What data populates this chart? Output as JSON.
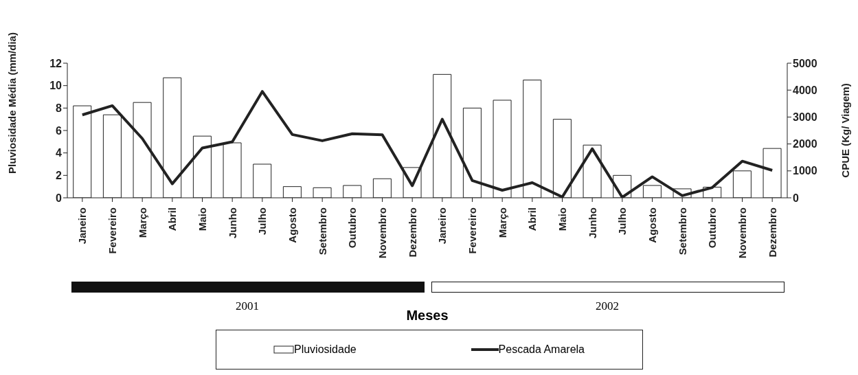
{
  "chart_data": {
    "type": "bar",
    "ylabel": "Pluviosidade Média (mm/dia)",
    "y2label": "CPUE (Kg/ Viagem)",
    "categories": [
      "Janeiro",
      "Fevereiro",
      "Março",
      "Abril",
      "Maio",
      "Junho",
      "Julho",
      "Agosto",
      "Setembro",
      "Outubro",
      "Novembro",
      "Dezembro",
      "Janeiro",
      "Fevereiro",
      "Março",
      "Abril",
      "Maio",
      "Junho",
      "Julho",
      "Agosto",
      "Setembro",
      "Outubro",
      "Novembro",
      "Dezembro"
    ],
    "series": [
      {
        "name": "Pluviosidade",
        "color": "#ffffff",
        "values": [
          8.2,
          7.4,
          8.5,
          10.7,
          5.5,
          4.9,
          3.0,
          1.0,
          0.9,
          1.1,
          1.7,
          2.7,
          11.0,
          8.0,
          8.7,
          10.5,
          7.0,
          4.7,
          2.0,
          1.1,
          0.8,
          0.95,
          2.4,
          4.4
        ]
      },
      {
        "name": "Pescada Amarela",
        "type": "line",
        "axis": "y2",
        "color": "#222222",
        "values": [
          3080,
          3420,
          2200,
          520,
          1850,
          2080,
          3950,
          2350,
          2120,
          2380,
          2340,
          450,
          2920,
          640,
          280,
          560,
          30,
          1820,
          20,
          780,
          80,
          380,
          1360,
          1020
        ]
      }
    ],
    "ylim": [
      0,
      12
    ],
    "yticks": [
      0,
      2,
      4,
      6,
      8,
      10,
      12
    ],
    "y2lim": [
      0,
      5000
    ],
    "y2ticks": [
      0,
      1000,
      2000,
      3000,
      4000,
      5000
    ],
    "annotations": [
      "2001",
      "2002",
      "Meses"
    ],
    "legend": "bottom",
    "marker": "none",
    "line_style": "solid"
  }
}
